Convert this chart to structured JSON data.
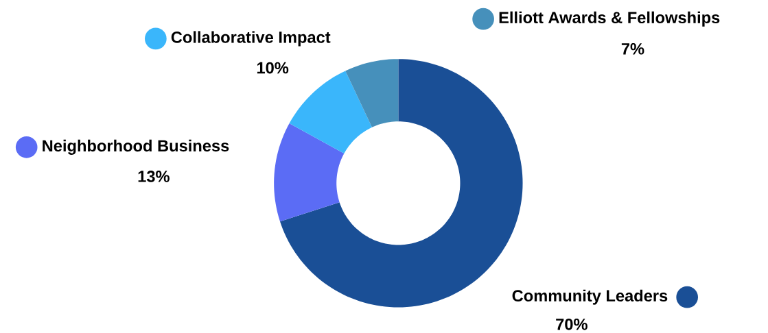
{
  "chart_data": {
    "type": "donut",
    "categories": [
      "Community Leaders",
      "Neighborhood Business",
      "Collaborative Impact",
      "Elliott Awards & Fellowships"
    ],
    "values": [
      70,
      13,
      10,
      7
    ],
    "colors": [
      "#1a4f96",
      "#5b6cf5",
      "#3ab6fb",
      "#4690bb"
    ],
    "value_labels": [
      "70%",
      "13%",
      "10%",
      "7%"
    ],
    "legend": "top"
  }
}
